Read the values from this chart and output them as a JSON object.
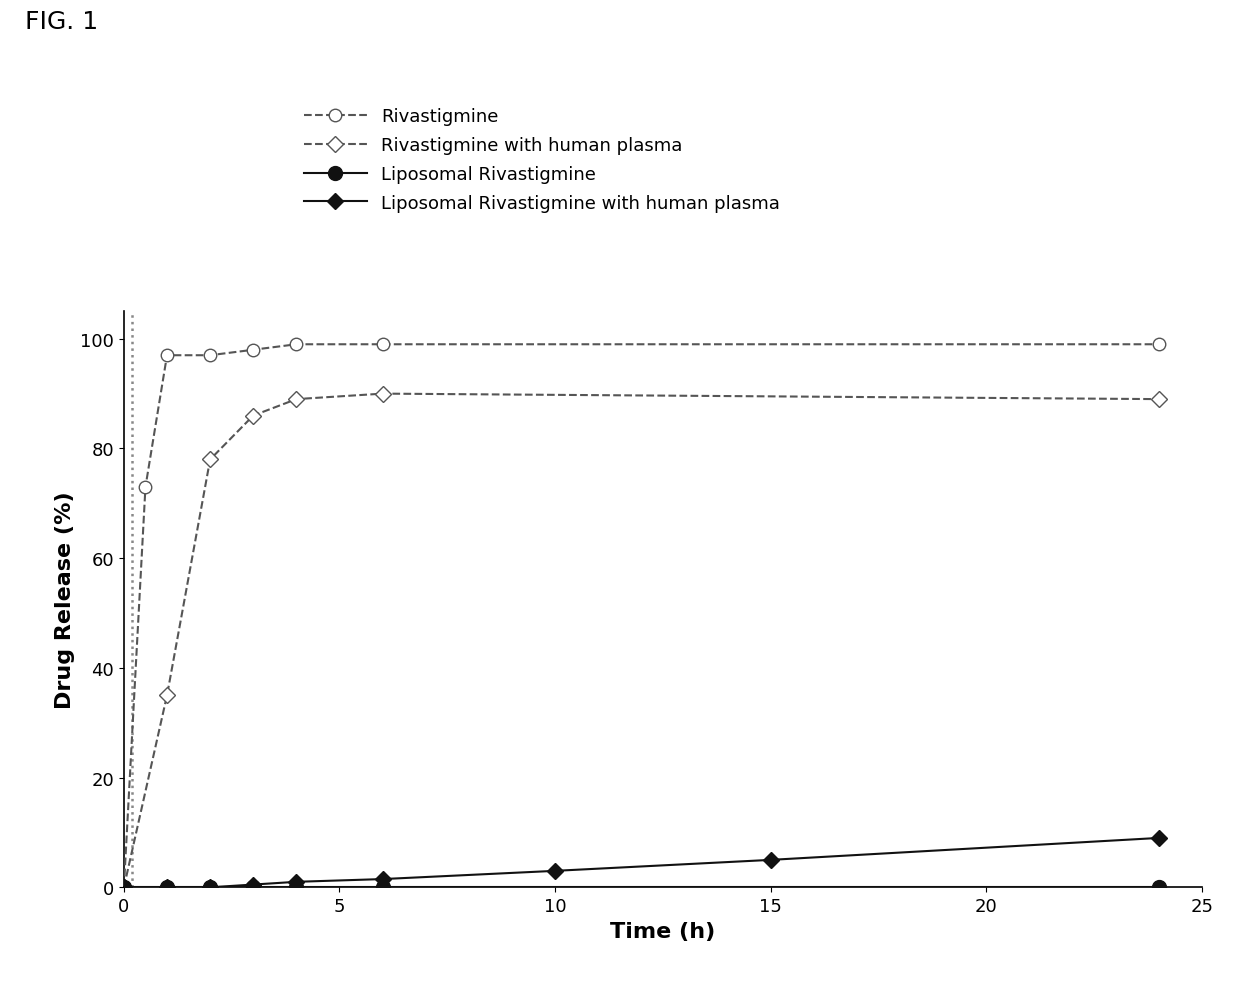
{
  "xlabel": "Time (h)",
  "ylabel": "Drug Release (%)",
  "xlim": [
    0,
    25
  ],
  "ylim": [
    0,
    105
  ],
  "xticks": [
    0,
    5,
    10,
    15,
    20,
    25
  ],
  "yticks": [
    0,
    20,
    40,
    60,
    80,
    100
  ],
  "series": [
    {
      "label": "Rivastigmine",
      "x": [
        0,
        0.5,
        1,
        2,
        3,
        4,
        6,
        24
      ],
      "y": [
        0,
        73,
        97,
        97,
        98,
        99,
        99,
        99
      ],
      "color": "#555555",
      "linestyle": "dashed",
      "marker": "o",
      "markerfacecolor": "white",
      "markersize": 9,
      "linewidth": 1.5
    },
    {
      "label": "Rivastigmine with human plasma",
      "x": [
        0,
        1,
        2,
        3,
        4,
        6,
        24
      ],
      "y": [
        0,
        35,
        78,
        86,
        89,
        90,
        89
      ],
      "color": "#555555",
      "linestyle": "dashed",
      "marker": "D",
      "markerfacecolor": "white",
      "markersize": 8,
      "linewidth": 1.5
    },
    {
      "label": "Liposomal Rivastigmine",
      "x": [
        0,
        1,
        2,
        3,
        4,
        6,
        24
      ],
      "y": [
        0,
        0,
        0,
        0,
        0,
        0,
        0
      ],
      "color": "#111111",
      "linestyle": "solid",
      "marker": "o",
      "markerfacecolor": "#111111",
      "markersize": 10,
      "linewidth": 1.5
    },
    {
      "label": "Liposomal Rivastigmine with human plasma",
      "x": [
        0,
        1,
        2,
        3,
        4,
        6,
        10,
        15,
        24
      ],
      "y": [
        0,
        0,
        0,
        0.5,
        1,
        1.5,
        3,
        5,
        9
      ],
      "color": "#111111",
      "linestyle": "solid",
      "marker": "D",
      "markerfacecolor": "#111111",
      "markersize": 8,
      "linewidth": 1.5
    }
  ],
  "dotted_vline_x": 0.18,
  "background_color": "#ffffff",
  "fig_title": "FIG. 1",
  "xlabel_fontsize": 16,
  "ylabel_fontsize": 16,
  "tick_labelsize": 13,
  "legend_fontsize": 13
}
